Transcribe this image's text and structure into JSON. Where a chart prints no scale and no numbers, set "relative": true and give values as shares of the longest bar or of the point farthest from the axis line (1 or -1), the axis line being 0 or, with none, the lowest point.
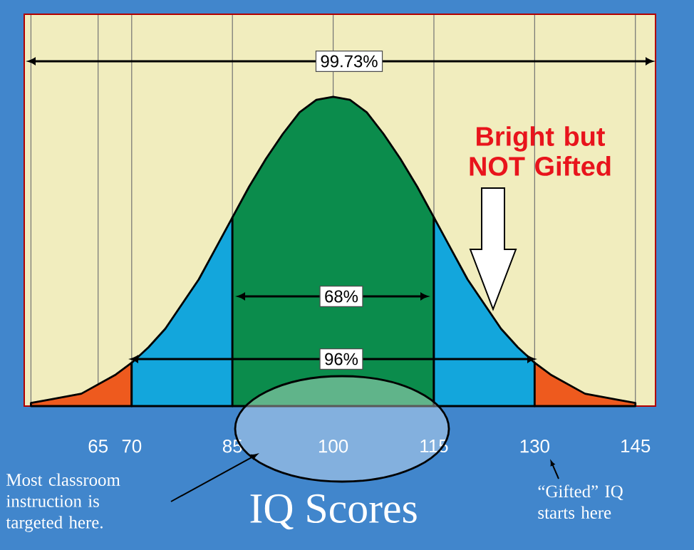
{
  "chart_data": {
    "type": "area",
    "relative": true,
    "xlabel": "IQ Scores",
    "xlim": [
      54,
      148
    ],
    "xticks": [
      {
        "value": 55,
        "label": null
      },
      65,
      70,
      85,
      100,
      115,
      130,
      145
    ],
    "grid": "x",
    "tick_labels": "x",
    "series": [
      {
        "color": "#ee5a1e",
        "x": [
          55,
          57.5,
          60,
          62.5,
          65,
          67.5,
          70
        ],
        "values": [
          0.01,
          0.02,
          0.03,
          0.04,
          0.07,
          0.1,
          0.14
        ]
      },
      {
        "color": "#13a6dc",
        "x": [
          70,
          72.5,
          75,
          77.5,
          80,
          82.5,
          85
        ],
        "values": [
          0.14,
          0.19,
          0.25,
          0.33,
          0.41,
          0.51,
          0.61
        ]
      },
      {
        "color": "#0b8c4c",
        "x": [
          85,
          87.5,
          90,
          92.5,
          95,
          97.5,
          100,
          102.5,
          105,
          107.5,
          110,
          112.5,
          115
        ],
        "values": [
          0.61,
          0.71,
          0.8,
          0.88,
          0.95,
          0.99,
          1,
          0.99,
          0.95,
          0.88,
          0.8,
          0.71,
          0.61
        ]
      },
      {
        "color": "#13a6dc",
        "x": [
          115,
          117.5,
          120,
          122.5,
          125,
          127.5,
          130
        ],
        "values": [
          0.61,
          0.51,
          0.41,
          0.33,
          0.25,
          0.19,
          0.14
        ]
      },
      {
        "color": "#ee5a1e",
        "x": [
          130,
          132.5,
          135,
          137.5,
          140,
          142.5,
          145
        ],
        "values": [
          0.14,
          0.1,
          0.07,
          0.04,
          0.03,
          0.02,
          0.01
        ]
      }
    ],
    "annotations": [
      "99.73%",
      "68%",
      "96%",
      "Bright but NOT Gifted",
      "Most classroom instruction is targeted here.",
      "“Gifted” IQ starts here"
    ]
  }
}
